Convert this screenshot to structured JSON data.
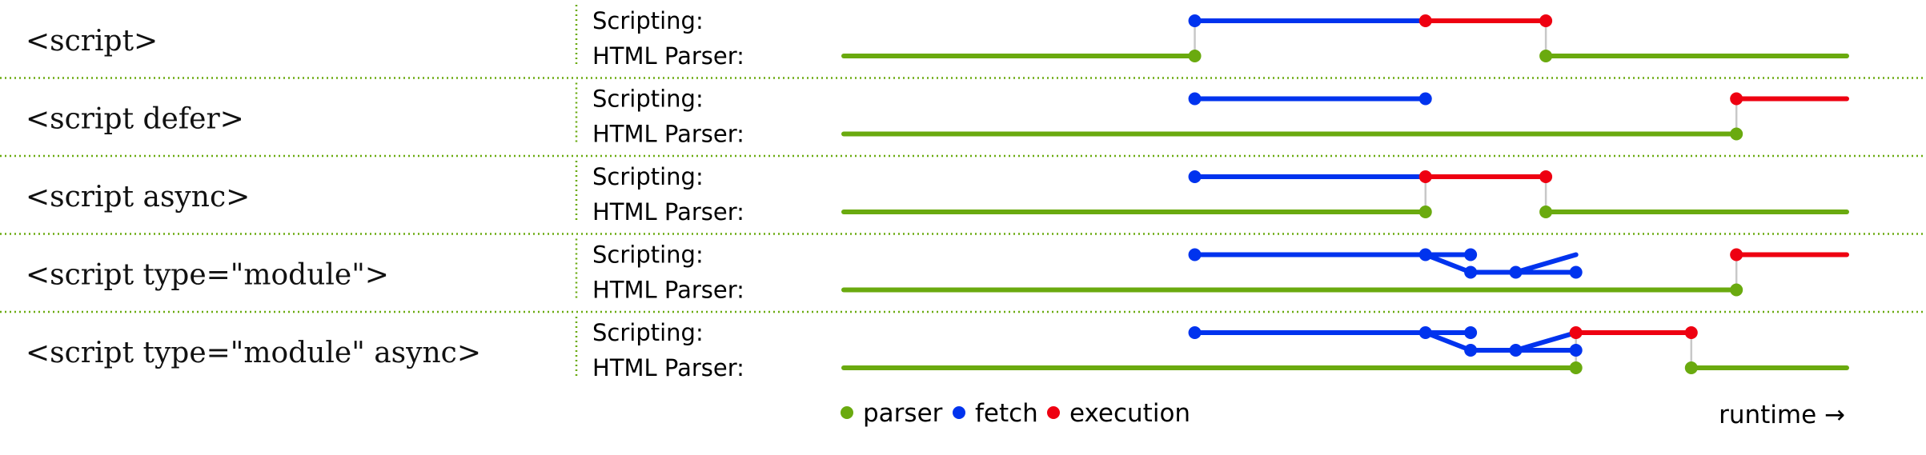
{
  "colors": {
    "parser": "#6aaa0f",
    "fetch": "#0033ee",
    "execution": "#ee0011",
    "connector": "#c8c8c8",
    "divider": "#6aaa0f"
  },
  "lane_labels": {
    "scripting": "Scripting:",
    "parser": "HTML Parser:"
  },
  "rows": [
    {
      "title": "<script>",
      "scripting": [
        {
          "kind": "fetch",
          "from": 0.35,
          "to": 0.58
        },
        {
          "kind": "execution",
          "from": 0.58,
          "to": 0.7
        }
      ],
      "parser": [
        {
          "from": 0.0,
          "to": 0.35
        },
        {
          "from": 0.7,
          "to": 1.0
        }
      ],
      "links": [
        0.35,
        0.7
      ],
      "points": {
        "scripting": [
          {
            "kind": "fetch",
            "at": 0.35
          },
          {
            "kind": "execution",
            "at": 0.58
          },
          {
            "kind": "execution",
            "at": 0.7
          }
        ],
        "parser": [
          {
            "at": 0.35
          },
          {
            "at": 0.7
          }
        ]
      }
    },
    {
      "title": "<script defer>",
      "scripting": [
        {
          "kind": "fetch",
          "from": 0.35,
          "to": 0.58
        },
        {
          "kind": "execution",
          "from": 0.89,
          "to": 1.0
        }
      ],
      "parser": [
        {
          "from": 0.0,
          "to": 0.89
        }
      ],
      "links": [
        0.89
      ],
      "points": {
        "scripting": [
          {
            "kind": "fetch",
            "at": 0.35
          },
          {
            "kind": "fetch",
            "at": 0.58
          },
          {
            "kind": "execution",
            "at": 0.89
          }
        ],
        "parser": [
          {
            "at": 0.89
          }
        ]
      }
    },
    {
      "title": "<script async>",
      "scripting": [
        {
          "kind": "fetch",
          "from": 0.35,
          "to": 0.58
        },
        {
          "kind": "execution",
          "from": 0.58,
          "to": 0.7
        }
      ],
      "parser": [
        {
          "from": 0.0,
          "to": 0.58
        },
        {
          "from": 0.7,
          "to": 1.0
        }
      ],
      "links": [
        0.58,
        0.7
      ],
      "points": {
        "scripting": [
          {
            "kind": "fetch",
            "at": 0.35
          },
          {
            "kind": "execution",
            "at": 0.58
          },
          {
            "kind": "execution",
            "at": 0.7
          }
        ],
        "parser": [
          {
            "at": 0.58
          },
          {
            "at": 0.7
          }
        ]
      }
    },
    {
      "title": "<script type=\"module\">",
      "module": true,
      "execution": {
        "from": 0.89,
        "to": 1.0
      },
      "parser": [
        {
          "from": 0.0,
          "to": 0.89
        }
      ],
      "links": [
        0.89
      ],
      "parser_points": [
        {
          "at": 0.89
        }
      ]
    },
    {
      "title": "<script type=\"module\" async>",
      "module": true,
      "execution": {
        "from": 0.73,
        "to": 0.845
      },
      "parser": [
        {
          "from": 0.0,
          "to": 0.73
        },
        {
          "from": 0.845,
          "to": 1.0
        }
      ],
      "links": [
        0.73,
        0.845
      ],
      "parser_points": [
        {
          "at": 0.73
        },
        {
          "at": 0.845
        }
      ]
    }
  ],
  "module_fetch": {
    "main": {
      "from": 0.35,
      "to": 0.58
    },
    "dep_a": {
      "from": 0.58,
      "to": 0.625
    },
    "dep_b_start": 0.625,
    "dep_c": {
      "from": 0.67,
      "to": 0.73
    },
    "dep_d_end": 0.73
  },
  "legend": [
    {
      "kind": "parser",
      "label": "parser"
    },
    {
      "kind": "fetch",
      "label": "fetch"
    },
    {
      "kind": "execution",
      "label": "execution"
    }
  ],
  "runtime_label": "runtime →"
}
